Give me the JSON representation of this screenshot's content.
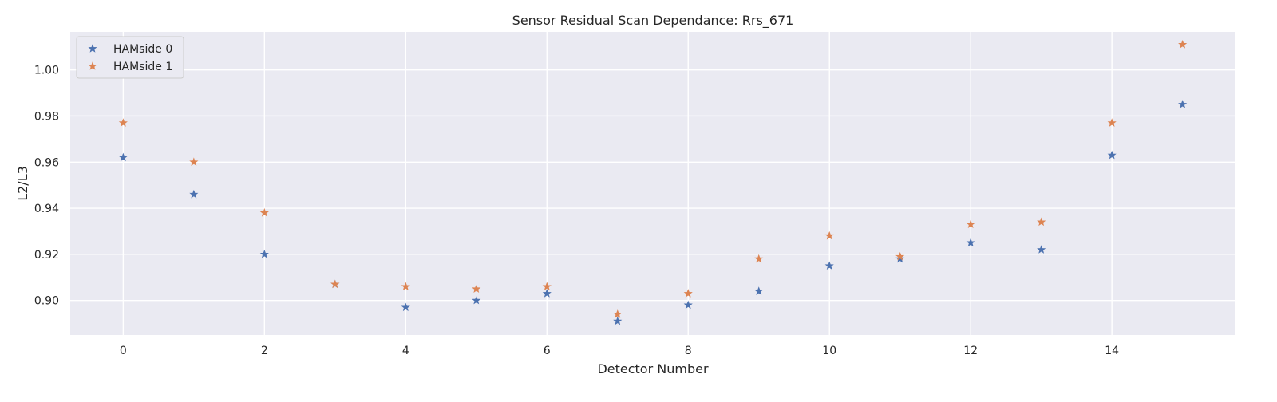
{
  "chart_data": {
    "type": "scatter",
    "title": "Sensor Residual Scan Dependance: Rrs_671",
    "xlabel": "Detector Number",
    "ylabel": "L2/L3",
    "xlim": [
      -0.75,
      15.75
    ],
    "ylim": [
      0.885,
      1.0165
    ],
    "xticks": [
      0,
      2,
      4,
      6,
      8,
      10,
      12,
      14
    ],
    "xtick_labels": [
      "0",
      "2",
      "4",
      "6",
      "8",
      "10",
      "12",
      "14"
    ],
    "yticks": [
      0.9,
      0.92,
      0.94,
      0.96,
      0.98,
      1.0
    ],
    "ytick_labels": [
      "0.90",
      "0.92",
      "0.94",
      "0.96",
      "0.98",
      "1.00"
    ],
    "grid": true,
    "legend_position": "top-left",
    "marker": "star",
    "x": [
      0,
      1,
      2,
      3,
      4,
      5,
      6,
      7,
      8,
      9,
      10,
      11,
      12,
      13,
      14,
      15
    ],
    "series": [
      {
        "name": "HAMside 0",
        "color": "#4c72b0",
        "values": [
          0.962,
          0.946,
          0.92,
          0.907,
          0.897,
          0.9,
          0.903,
          0.891,
          0.898,
          0.904,
          0.915,
          0.918,
          0.925,
          0.922,
          0.963,
          0.985
        ]
      },
      {
        "name": "HAMside 1",
        "color": "#dd8452",
        "values": [
          0.977,
          0.96,
          0.938,
          0.907,
          0.906,
          0.905,
          0.906,
          0.894,
          0.903,
          0.918,
          0.928,
          0.919,
          0.933,
          0.934,
          0.977,
          1.011
        ]
      }
    ]
  }
}
